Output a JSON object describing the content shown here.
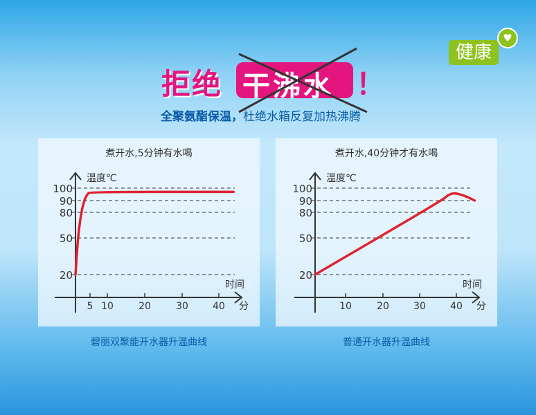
{
  "headline": {
    "prefix": "拒绝",
    "boxed": "干沸水",
    "suffix": "！"
  },
  "subtitle": {
    "bold": "全聚氨酯保温，",
    "rest": "杜绝水箱反复加热沸腾"
  },
  "badge": {
    "label": "健康",
    "icon": "heart-icon"
  },
  "colors": {
    "line": "#e02330",
    "headline": "#e4157f",
    "badge": "#8dc21f",
    "text": "#0a5aa8"
  },
  "chart_data": [
    {
      "type": "line",
      "title": "煮开水,5分钟有水喝",
      "ylabel": "温度℃",
      "xlabel": "时间",
      "xunit": "分",
      "yticks": [
        20,
        50,
        80,
        90,
        100
      ],
      "xticks": [
        5,
        10,
        20,
        30,
        40
      ],
      "grid": true,
      "series": [
        {
          "x": [
            0,
            0.5,
            1,
            2,
            3,
            4,
            5,
            44
          ],
          "y": [
            20,
            38,
            55,
            80,
            90,
            95,
            97,
            97
          ]
        }
      ],
      "caption": "碧丽双聚能开水器升温曲线"
    },
    {
      "type": "line",
      "title": "煮开水,40分钟才有水喝",
      "ylabel": "温度℃",
      "xlabel": "时间",
      "xunit": "分",
      "yticks": [
        20,
        50,
        80,
        90,
        100
      ],
      "xticks": [
        10,
        20,
        30,
        40
      ],
      "grid": true,
      "series": [
        {
          "x": [
            0,
            36,
            38,
            39.5,
            41,
            43,
            45
          ],
          "y": [
            20,
            90,
            95,
            96,
            95,
            93,
            90
          ]
        }
      ],
      "caption": "普通开水器升温曲线"
    }
  ]
}
